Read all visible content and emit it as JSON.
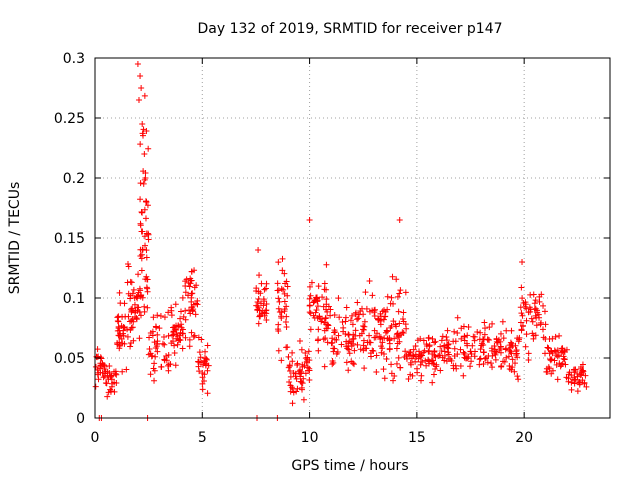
{
  "chart_data": {
    "type": "scatter",
    "title": "Day 132 of 2019, SRMTID for receiver p147",
    "xlabel": "GPS time / hours",
    "ylabel": "SRMTID / TECUs",
    "xlim": [
      0,
      24
    ],
    "ylim": [
      0,
      0.3
    ],
    "x_ticks": [
      0,
      5,
      10,
      15,
      20
    ],
    "x_tick_labels": [
      "0",
      "5",
      "10",
      "15",
      "20"
    ],
    "y_ticks": [
      0,
      0.05,
      0.1,
      0.15,
      0.2,
      0.25,
      0.3
    ],
    "y_tick_labels": [
      "0",
      "0.05",
      "0.1",
      "0.15",
      "0.2",
      "0.25",
      "0.3"
    ],
    "grid": true,
    "marker": "+",
    "series": [
      {
        "name": "SRMTID p147",
        "color": "#ff0000",
        "segments": [
          {
            "x_range": [
              0.0,
              0.5
            ],
            "center": 0.045,
            "spread": 0.025,
            "count": 30
          },
          {
            "x_range": [
              0.5,
              1.0
            ],
            "center": 0.03,
            "spread": 0.02,
            "count": 25
          },
          {
            "x_range": [
              1.0,
              1.5
            ],
            "center": 0.07,
            "spread": 0.045,
            "count": 35
          },
          {
            "x_range": [
              1.5,
              2.1
            ],
            "center": 0.09,
            "spread": 0.045,
            "count": 45
          },
          {
            "x_range": [
              2.1,
              2.5
            ],
            "center": 0.16,
            "spread": 0.12,
            "count": 55
          },
          {
            "x_range": [
              2.5,
              3.5
            ],
            "center": 0.06,
            "spread": 0.035,
            "count": 45
          },
          {
            "x_range": [
              3.5,
              4.2
            ],
            "center": 0.07,
            "spread": 0.04,
            "count": 40
          },
          {
            "x_range": [
              4.2,
              4.8
            ],
            "center": 0.095,
            "spread": 0.045,
            "count": 40
          },
          {
            "x_range": [
              4.8,
              5.3
            ],
            "center": 0.045,
            "spread": 0.03,
            "count": 30
          },
          {
            "x_range": [
              7.5,
              8.0
            ],
            "center": 0.09,
            "spread": 0.045,
            "count": 35
          },
          {
            "x_range": [
              8.5,
              9.0
            ],
            "center": 0.085,
            "spread": 0.06,
            "count": 35
          },
          {
            "x_range": [
              9.0,
              10.0
            ],
            "center": 0.04,
            "spread": 0.03,
            "count": 55
          },
          {
            "x_range": [
              10.0,
              11.0
            ],
            "center": 0.085,
            "spread": 0.055,
            "count": 60
          },
          {
            "x_range": [
              11.0,
              12.5
            ],
            "center": 0.07,
            "spread": 0.04,
            "count": 70
          },
          {
            "x_range": [
              12.5,
              13.5
            ],
            "center": 0.075,
            "spread": 0.045,
            "count": 55
          },
          {
            "x_range": [
              13.5,
              14.5
            ],
            "center": 0.075,
            "spread": 0.055,
            "count": 60
          },
          {
            "x_range": [
              14.5,
              16.0
            ],
            "center": 0.05,
            "spread": 0.025,
            "count": 70
          },
          {
            "x_range": [
              16.0,
              18.5
            ],
            "center": 0.06,
            "spread": 0.03,
            "count": 100
          },
          {
            "x_range": [
              18.5,
              19.8
            ],
            "center": 0.055,
            "spread": 0.03,
            "count": 60
          },
          {
            "x_range": [
              19.8,
              21.0
            ],
            "center": 0.08,
            "spread": 0.04,
            "count": 55
          },
          {
            "x_range": [
              21.0,
              22.0
            ],
            "center": 0.05,
            "spread": 0.025,
            "count": 45
          },
          {
            "x_range": [
              22.0,
              22.9
            ],
            "center": 0.035,
            "spread": 0.015,
            "count": 40
          }
        ],
        "points": [
          [
            0.2,
            0.0
          ],
          [
            0.3,
            0.0
          ],
          [
            2.45,
            0.0
          ],
          [
            7.55,
            0.0
          ],
          [
            8.5,
            0.0
          ],
          [
            2.0,
            0.295
          ],
          [
            2.1,
            0.285
          ],
          [
            2.15,
            0.275
          ],
          [
            2.05,
            0.265
          ],
          [
            2.2,
            0.245
          ],
          [
            2.3,
            0.22
          ],
          [
            2.35,
            0.2
          ],
          [
            2.4,
            0.18
          ],
          [
            14.2,
            0.165
          ],
          [
            10.0,
            0.165
          ],
          [
            7.6,
            0.14
          ],
          [
            19.9,
            0.13
          ]
        ]
      }
    ]
  }
}
